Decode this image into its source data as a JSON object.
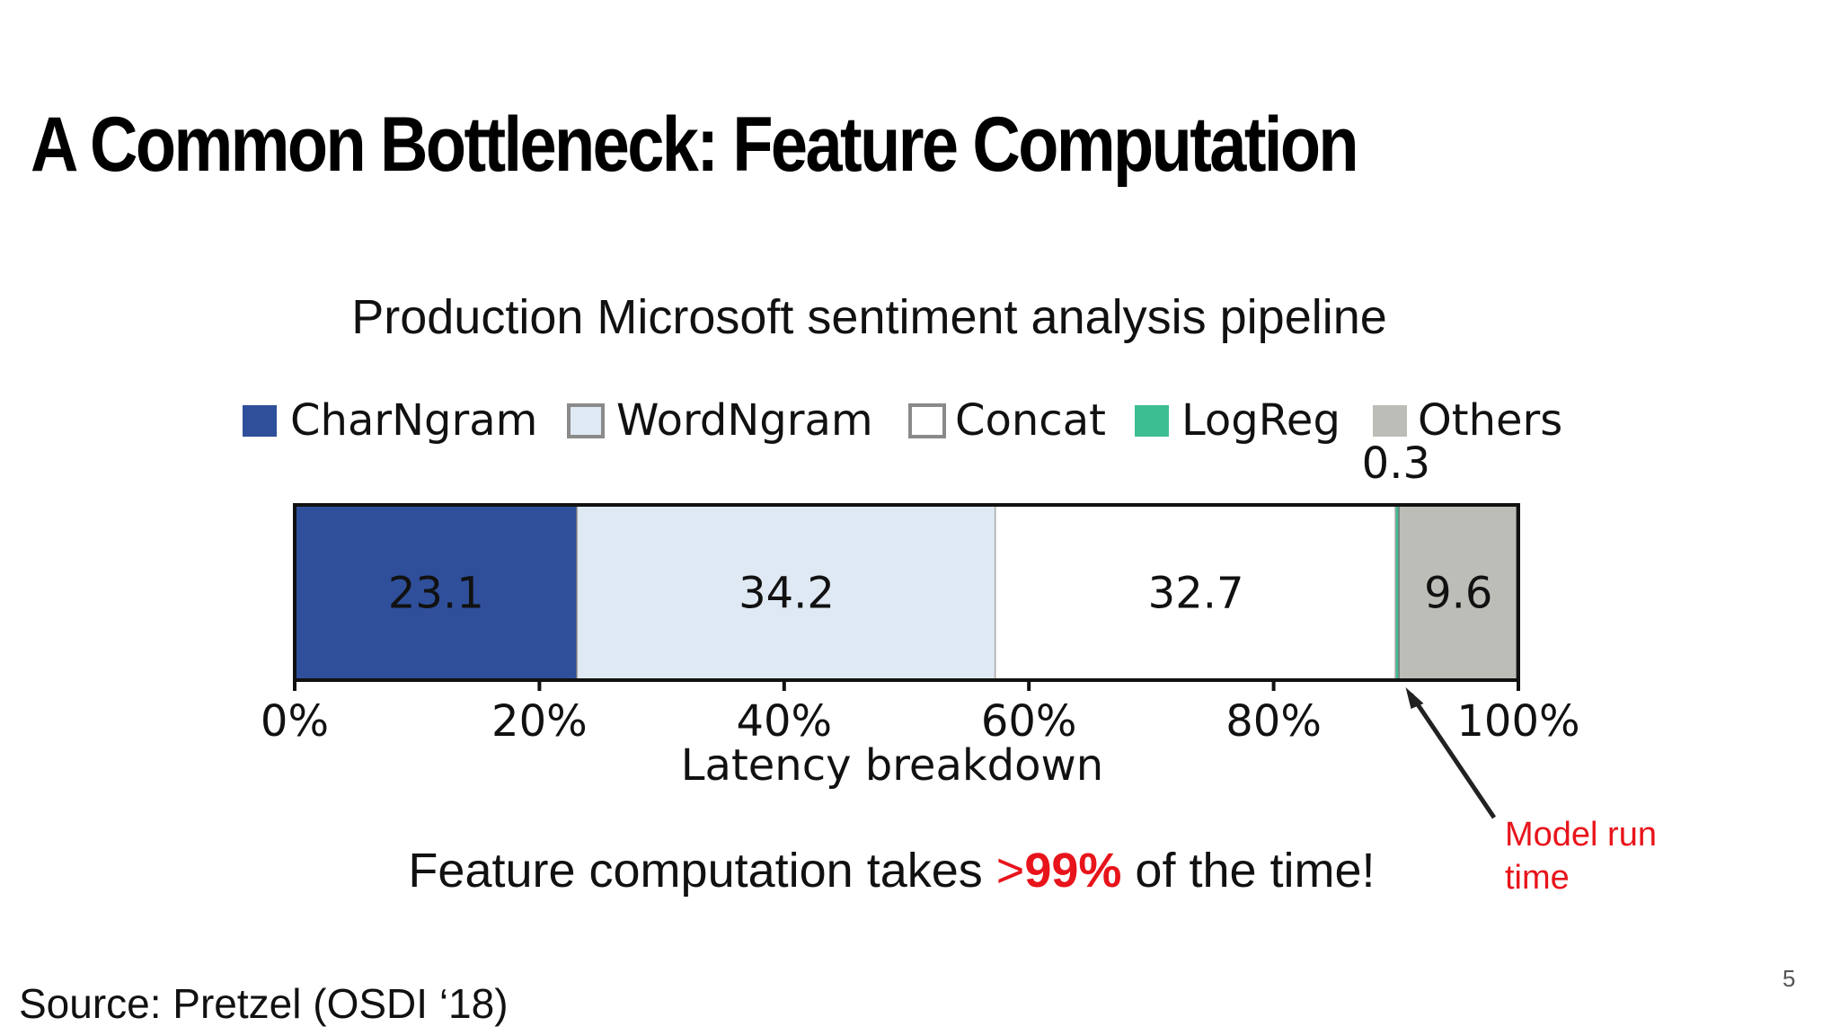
{
  "slide": {
    "title": "A Common Bottleneck:  Feature Computation",
    "subtitle": "Production Microsoft sentiment analysis pipeline",
    "takeaway_before": "Feature computation takes ",
    "takeaway_hl_prefix": ">",
    "takeaway_hl_value": "99%",
    "takeaway_after": " of the time!",
    "note_line1": "Model run",
    "note_line2": "time",
    "source": "Source:  Pretzel (OSDI ‘18)",
    "page_number": "5"
  },
  "colors": {
    "charngram": "#2f4f9a",
    "wordngram": "#dfe9f4",
    "concat": "#ffffff",
    "logreg": "#3dbd92",
    "others": "#bdbdb8",
    "highlight": "#e8141b"
  },
  "chart_data": {
    "type": "bar",
    "orientation": "horizontal-stacked",
    "xlabel": "Latency breakdown",
    "xlim": [
      0,
      100
    ],
    "xticks": [
      "0%",
      "20%",
      "40%",
      "60%",
      "80%",
      "100%"
    ],
    "legend_position": "top",
    "series": [
      {
        "name": "CharNgram",
        "value": 23.1,
        "label": "23.1",
        "color": "#2f4f9a"
      },
      {
        "name": "WordNgram",
        "value": 34.2,
        "label": "34.2",
        "color": "#dfe9f4"
      },
      {
        "name": "Concat",
        "value": 32.7,
        "label": "32.7",
        "color": "#ffffff"
      },
      {
        "name": "LogReg",
        "value": 0.3,
        "label": "0.3",
        "color": "#3dbd92"
      },
      {
        "name": "Others",
        "value": 9.6,
        "label": "9.6",
        "color": "#bdbdb8"
      }
    ]
  }
}
